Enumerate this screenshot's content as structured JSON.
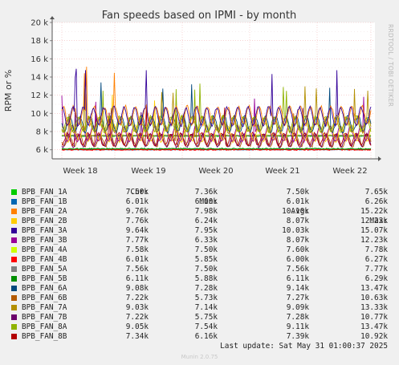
{
  "chart_data": {
    "type": "line",
    "title": "Fan speeds based on IPMI - by month",
    "ylabel": "RPM or %",
    "ylim": [
      5000,
      20000
    ],
    "y_ticks": [
      "6 k",
      "8 k",
      "10 k",
      "12 k",
      "14 k",
      "16 k",
      "18 k",
      "20 k"
    ],
    "x_ticks": [
      "Week 18",
      "Week 19",
      "Week 20",
      "Week 21",
      "Week 22"
    ],
    "grid": true,
    "watermark": "RRDTOOL / TOBI OETIKER",
    "series": [
      {
        "name": "BPB_FAN_1A",
        "color": "#00cc00",
        "avg": 7500,
        "min": 7360,
        "max": 7650,
        "cur": "7.50k",
        "mn": "7.36k",
        "av": "7.50k",
        "mx": "7.65k"
      },
      {
        "name": "BPB_FAN_1B",
        "color": "#0066b3",
        "avg": 6010,
        "min": 6000,
        "max": 6260,
        "cur": "6.01k",
        "mn": "6.00k",
        "av": "6.01k",
        "mx": "6.26k"
      },
      {
        "name": "BPB_FAN_2A",
        "color": "#ff8000",
        "avg": 10100,
        "min": 7980,
        "max": 15220,
        "cur": "9.76k",
        "mn": "7.98k",
        "av": "10.10k",
        "mx": "15.22k"
      },
      {
        "name": "BPB_FAN_2B",
        "color": "#ffcc00",
        "avg": 8070,
        "min": 6240,
        "max": 12230,
        "cur": "7.76k",
        "mn": "6.24k",
        "av": "8.07k",
        "mx": "12.23k"
      },
      {
        "name": "BPB_FAN_3A",
        "color": "#330099",
        "avg": 10030,
        "min": 7950,
        "max": 15070,
        "cur": "9.64k",
        "mn": "7.95k",
        "av": "10.03k",
        "mx": "15.07k"
      },
      {
        "name": "BPB_FAN_3B",
        "color": "#990099",
        "avg": 8070,
        "min": 6330,
        "max": 12230,
        "cur": "7.77k",
        "mn": "6.33k",
        "av": "8.07k",
        "mx": "12.23k"
      },
      {
        "name": "BPB_FAN_4A",
        "color": "#ccff00",
        "avg": 7600,
        "min": 7500,
        "max": 7780,
        "cur": "7.58k",
        "mn": "7.50k",
        "av": "7.60k",
        "mx": "7.78k"
      },
      {
        "name": "BPB_FAN_4B",
        "color": "#ff0000",
        "avg": 6000,
        "min": 5850,
        "max": 6270,
        "cur": "6.01k",
        "mn": "5.85k",
        "av": "6.00k",
        "mx": "6.27k"
      },
      {
        "name": "BPB_FAN_5A",
        "color": "#808080",
        "avg": 7560,
        "min": 7500,
        "max": 7770,
        "cur": "7.56k",
        "mn": "7.50k",
        "av": "7.56k",
        "mx": "7.77k"
      },
      {
        "name": "BPB_FAN_5B",
        "color": "#008f00",
        "avg": 6110,
        "min": 5880,
        "max": 6290,
        "cur": "6.11k",
        "mn": "5.88k",
        "av": "6.11k",
        "mx": "6.29k"
      },
      {
        "name": "BPB_FAN_6A",
        "color": "#00487d",
        "avg": 9140,
        "min": 7280,
        "max": 13470,
        "cur": "9.08k",
        "mn": "7.28k",
        "av": "9.14k",
        "mx": "13.47k"
      },
      {
        "name": "BPB_FAN_6B",
        "color": "#b35a00",
        "avg": 7270,
        "min": 5730,
        "max": 10630,
        "cur": "7.22k",
        "mn": "5.73k",
        "av": "7.27k",
        "mx": "10.63k"
      },
      {
        "name": "BPB_FAN_7A",
        "color": "#b38f00",
        "avg": 9090,
        "min": 7140,
        "max": 13330,
        "cur": "9.03k",
        "mn": "7.14k",
        "av": "9.09k",
        "mx": "13.33k"
      },
      {
        "name": "BPB_FAN_7B",
        "color": "#6b006b",
        "avg": 7280,
        "min": 5750,
        "max": 10770,
        "cur": "7.22k",
        "mn": "5.75k",
        "av": "7.28k",
        "mx": "10.77k"
      },
      {
        "name": "BPB_FAN_8A",
        "color": "#8fb300",
        "avg": 9110,
        "min": 7540,
        "max": 13470,
        "cur": "9.05k",
        "mn": "7.54k",
        "av": "9.11k",
        "mx": "13.47k"
      },
      {
        "name": "BPB_FAN_8B",
        "color": "#b30000",
        "avg": 7390,
        "min": 6160,
        "max": 10920,
        "cur": "7.34k",
        "mn": "6.16k",
        "av": "7.39k",
        "mx": "10.92k"
      }
    ]
  },
  "legend_headers": {
    "cur": "Cur:",
    "min": "Min:",
    "avg": "Avg:",
    "max": "Max:"
  },
  "last_update": "Last update: Sat May 31 01:00:37 2025",
  "footer": "Munin 2.0.75"
}
